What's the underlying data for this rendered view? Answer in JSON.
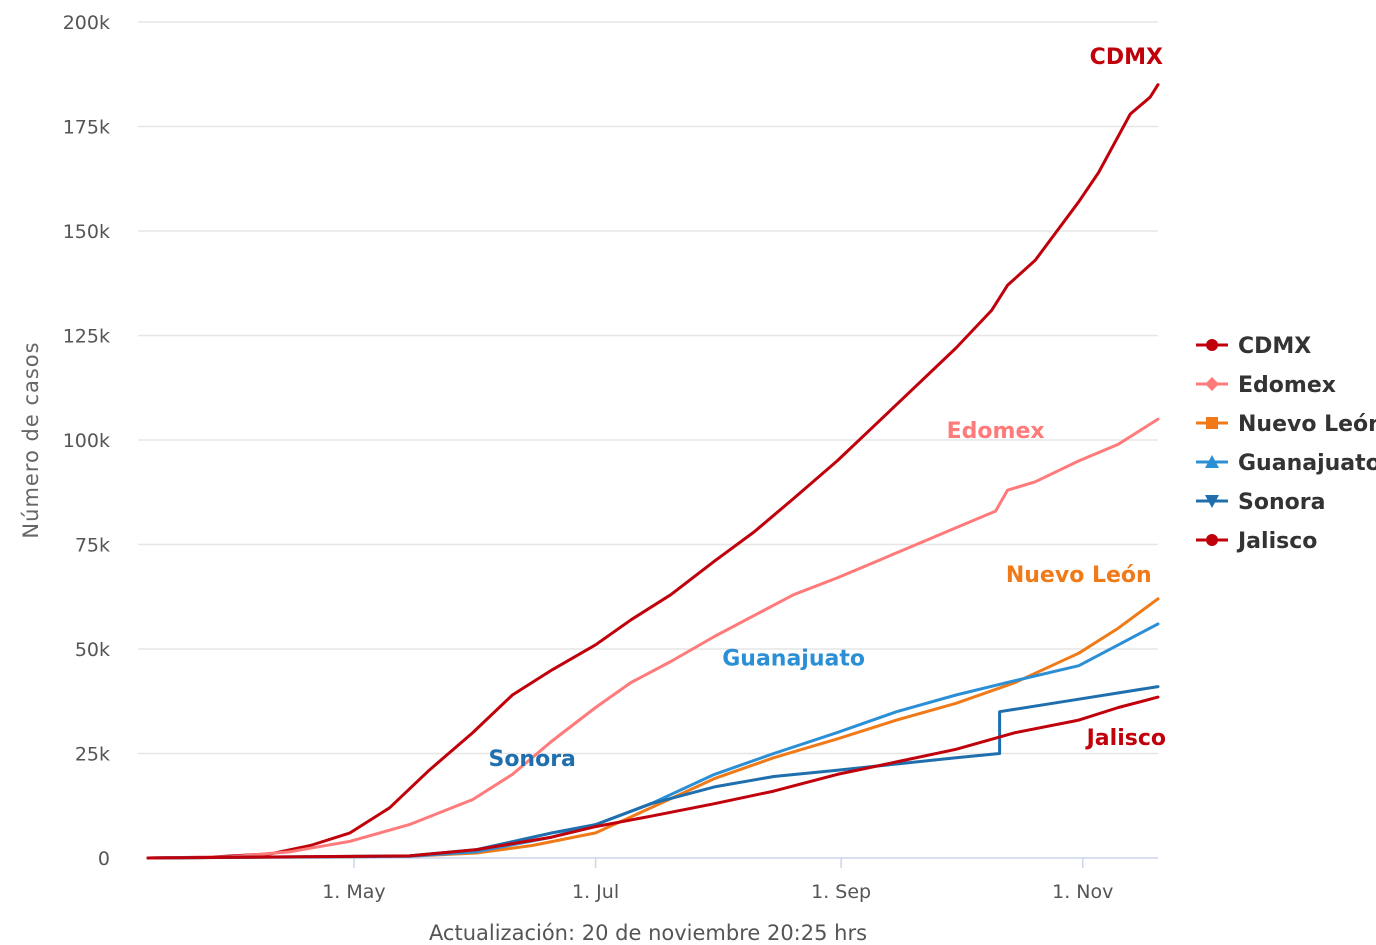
{
  "chart_data": {
    "type": "line",
    "ylabel": "Número de casos",
    "caption": "Actualización: 20 de noviembre 20:25 hrs",
    "x_range": [
      "2020-03-10",
      "2020-11-20"
    ],
    "ylim": [
      0,
      200000
    ],
    "y_ticks": [
      0,
      25000,
      50000,
      75000,
      100000,
      125000,
      150000,
      175000,
      200000
    ],
    "y_tick_labels": [
      "0",
      "25k",
      "50k",
      "75k",
      "100k",
      "125k",
      "150k",
      "175k",
      "200k"
    ],
    "x_ticks": [
      {
        "date": "2020-05-01",
        "label": "1. May"
      },
      {
        "date": "2020-07-01",
        "label": "1. Jul"
      },
      {
        "date": "2020-09-01",
        "label": "1. Sep"
      },
      {
        "date": "2020-11-01",
        "label": "1. Nov"
      }
    ],
    "grid": true,
    "legend_position": "right",
    "series": [
      {
        "name": "CDMX",
        "color": "#c0000b",
        "marker": "circle",
        "points": [
          [
            "2020-03-10",
            0
          ],
          [
            "2020-03-25",
            200
          ],
          [
            "2020-04-10",
            1000
          ],
          [
            "2020-04-20",
            3000
          ],
          [
            "2020-04-30",
            6000
          ],
          [
            "2020-05-10",
            12000
          ],
          [
            "2020-05-20",
            21000
          ],
          [
            "2020-05-31",
            30000
          ],
          [
            "2020-06-10",
            39000
          ],
          [
            "2020-06-20",
            45000
          ],
          [
            "2020-07-01",
            51000
          ],
          [
            "2020-07-10",
            57000
          ],
          [
            "2020-07-20",
            63000
          ],
          [
            "2020-07-31",
            71000
          ],
          [
            "2020-08-10",
            78000
          ],
          [
            "2020-08-20",
            86000
          ],
          [
            "2020-08-31",
            95000
          ],
          [
            "2020-09-10",
            104000
          ],
          [
            "2020-09-20",
            113000
          ],
          [
            "2020-09-30",
            122000
          ],
          [
            "2020-10-09",
            131000
          ],
          [
            "2020-10-13",
            137000
          ],
          [
            "2020-10-20",
            143000
          ],
          [
            "2020-10-31",
            157000
          ],
          [
            "2020-11-05",
            164000
          ],
          [
            "2020-11-13",
            178000
          ],
          [
            "2020-11-18",
            182000
          ],
          [
            "2020-11-20",
            185000
          ]
        ]
      },
      {
        "name": "Edomex",
        "color": "#ff7a7a",
        "marker": "diamond",
        "points": [
          [
            "2020-03-10",
            0
          ],
          [
            "2020-03-31",
            300
          ],
          [
            "2020-04-15",
            1500
          ],
          [
            "2020-04-30",
            4000
          ],
          [
            "2020-05-15",
            8000
          ],
          [
            "2020-05-31",
            14000
          ],
          [
            "2020-06-10",
            20000
          ],
          [
            "2020-06-20",
            28000
          ],
          [
            "2020-07-01",
            36000
          ],
          [
            "2020-07-10",
            42000
          ],
          [
            "2020-07-20",
            47000
          ],
          [
            "2020-07-31",
            53000
          ],
          [
            "2020-08-10",
            58000
          ],
          [
            "2020-08-20",
            63000
          ],
          [
            "2020-08-31",
            67000
          ],
          [
            "2020-09-10",
            71000
          ],
          [
            "2020-09-20",
            75000
          ],
          [
            "2020-09-30",
            79000
          ],
          [
            "2020-10-10",
            83000
          ],
          [
            "2020-10-13",
            88000
          ],
          [
            "2020-10-20",
            90000
          ],
          [
            "2020-10-31",
            95000
          ],
          [
            "2020-11-10",
            99000
          ],
          [
            "2020-11-20",
            105000
          ]
        ]
      },
      {
        "name": "Nuevo León",
        "color": "#f07a18",
        "marker": "square",
        "points": [
          [
            "2020-03-10",
            0
          ],
          [
            "2020-05-15",
            400
          ],
          [
            "2020-06-01",
            1200
          ],
          [
            "2020-06-15",
            3000
          ],
          [
            "2020-07-01",
            6000
          ],
          [
            "2020-07-15",
            12000
          ],
          [
            "2020-07-31",
            19000
          ],
          [
            "2020-08-15",
            24000
          ],
          [
            "2020-08-31",
            28500
          ],
          [
            "2020-09-15",
            33000
          ],
          [
            "2020-09-30",
            37000
          ],
          [
            "2020-10-15",
            42000
          ],
          [
            "2020-10-31",
            49000
          ],
          [
            "2020-11-10",
            55000
          ],
          [
            "2020-11-20",
            62000
          ]
        ]
      },
      {
        "name": "Guanajuato",
        "color": "#2b8fd6",
        "marker": "triangle",
        "points": [
          [
            "2020-03-10",
            0
          ],
          [
            "2020-05-15",
            400
          ],
          [
            "2020-06-01",
            1500
          ],
          [
            "2020-06-20",
            5000
          ],
          [
            "2020-07-01",
            8000
          ],
          [
            "2020-07-15",
            13000
          ],
          [
            "2020-07-31",
            20000
          ],
          [
            "2020-08-15",
            25000
          ],
          [
            "2020-08-31",
            30000
          ],
          [
            "2020-09-15",
            35000
          ],
          [
            "2020-09-30",
            39000
          ],
          [
            "2020-10-13",
            42000
          ],
          [
            "2020-10-31",
            46000
          ],
          [
            "2020-11-10",
            51000
          ],
          [
            "2020-11-20",
            56000
          ]
        ]
      },
      {
        "name": "Sonora",
        "color": "#1f6fae",
        "marker": "triangle-down",
        "points": [
          [
            "2020-03-10",
            0
          ],
          [
            "2020-05-15",
            500
          ],
          [
            "2020-06-01",
            2000
          ],
          [
            "2020-06-20",
            6000
          ],
          [
            "2020-07-01",
            8000
          ],
          [
            "2020-07-15",
            13000
          ],
          [
            "2020-07-31",
            17000
          ],
          [
            "2020-08-15",
            19500
          ],
          [
            "2020-08-31",
            21000
          ],
          [
            "2020-09-15",
            22500
          ],
          [
            "2020-09-30",
            24000
          ],
          [
            "2020-10-11",
            25000
          ],
          [
            "2020-10-11",
            35000
          ],
          [
            "2020-10-31",
            38000
          ],
          [
            "2020-11-20",
            41000
          ]
        ]
      },
      {
        "name": "Jalisco",
        "color": "#c0000b",
        "marker": "circle",
        "points": [
          [
            "2020-03-10",
            0
          ],
          [
            "2020-05-15",
            500
          ],
          [
            "2020-06-01",
            2000
          ],
          [
            "2020-06-20",
            5000
          ],
          [
            "2020-07-01",
            7500
          ],
          [
            "2020-07-15",
            10000
          ],
          [
            "2020-07-31",
            13000
          ],
          [
            "2020-08-15",
            16000
          ],
          [
            "2020-08-31",
            20000
          ],
          [
            "2020-09-15",
            23000
          ],
          [
            "2020-09-30",
            26000
          ],
          [
            "2020-10-15",
            30000
          ],
          [
            "2020-10-31",
            33000
          ],
          [
            "2020-11-10",
            36000
          ],
          [
            "2020-11-20",
            38500
          ]
        ]
      }
    ],
    "annotations": [
      {
        "series": "CDMX",
        "text": "CDMX",
        "color": "#c0000b",
        "date": "2020-11-12",
        "value": 190000
      },
      {
        "series": "Edomex",
        "text": "Edomex",
        "color": "#ff7a7a",
        "date": "2020-10-10",
        "value": 100500
      },
      {
        "series": "Nuevo León",
        "text": "Nuevo León",
        "color": "#f07a18",
        "date": "2020-10-31",
        "value": 66000
      },
      {
        "series": "Guanajuato",
        "text": "Guanajuato",
        "color": "#2b8fd6",
        "date": "2020-08-20",
        "value": 46000
      },
      {
        "series": "Sonora",
        "text": "Sonora",
        "color": "#1f6fae",
        "date": "2020-06-15",
        "value": 22000
      },
      {
        "series": "Jalisco",
        "text": "Jalisco",
        "color": "#c0000b",
        "date": "2020-11-12",
        "value": 27000
      }
    ]
  }
}
